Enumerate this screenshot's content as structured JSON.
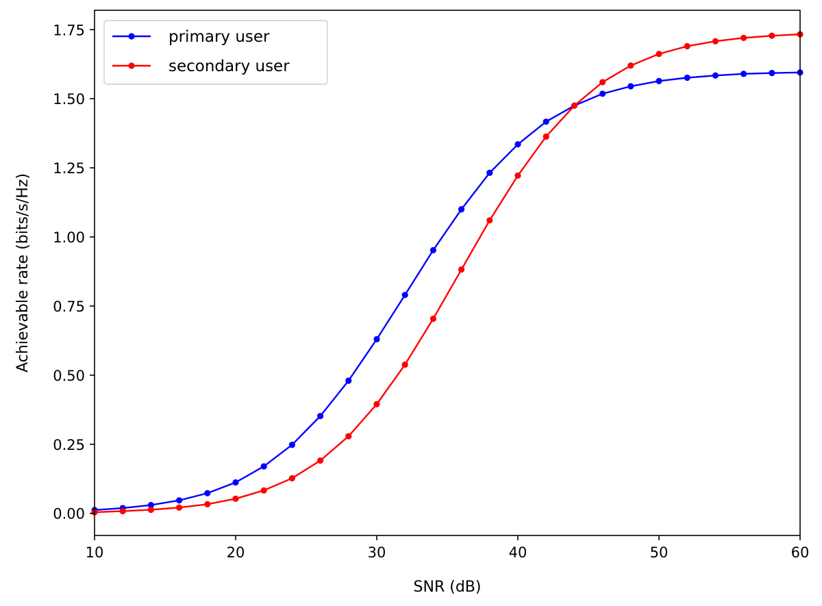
{
  "chart_data": {
    "type": "line",
    "title": "",
    "xlabel": "SNR (dB)",
    "ylabel": "Achievable rate (bits/s/Hz)",
    "xlim": [
      10,
      60
    ],
    "ylim": [
      -0.08,
      1.82
    ],
    "xticks": [
      10,
      20,
      30,
      40,
      50,
      60
    ],
    "xtick_labels": [
      "10",
      "20",
      "30",
      "40",
      "50",
      "60"
    ],
    "yticks": [
      0.0,
      0.25,
      0.5,
      0.75,
      1.0,
      1.25,
      1.5,
      1.75
    ],
    "ytick_labels": [
      "0.00",
      "0.25",
      "0.50",
      "0.75",
      "1.00",
      "1.25",
      "1.50",
      "1.75"
    ],
    "grid": false,
    "legend_position": "top-left",
    "x": [
      10,
      12,
      14,
      16,
      18,
      20,
      22,
      24,
      26,
      28,
      30,
      32,
      34,
      36,
      38,
      40,
      42,
      44,
      46,
      48,
      50,
      52,
      54,
      56,
      58,
      60
    ],
    "series": [
      {
        "name": "primary user",
        "color": "#0000ff",
        "values": [
          0.012,
          0.019,
          0.03,
          0.047,
          0.073,
          0.112,
          0.17,
          0.248,
          0.352,
          0.48,
          0.63,
          0.79,
          0.952,
          1.1,
          1.232,
          1.335,
          1.417,
          1.475,
          1.518,
          1.545,
          1.564,
          1.576,
          1.584,
          1.59,
          1.593,
          1.595
        ]
      },
      {
        "name": "secondary user",
        "color": "#ff0000",
        "values": [
          0.004,
          0.008,
          0.013,
          0.021,
          0.033,
          0.053,
          0.083,
          0.127,
          0.191,
          0.279,
          0.395,
          0.538,
          0.704,
          0.882,
          1.06,
          1.222,
          1.363,
          1.475,
          1.56,
          1.62,
          1.662,
          1.69,
          1.708,
          1.72,
          1.728,
          1.733
        ]
      }
    ]
  }
}
